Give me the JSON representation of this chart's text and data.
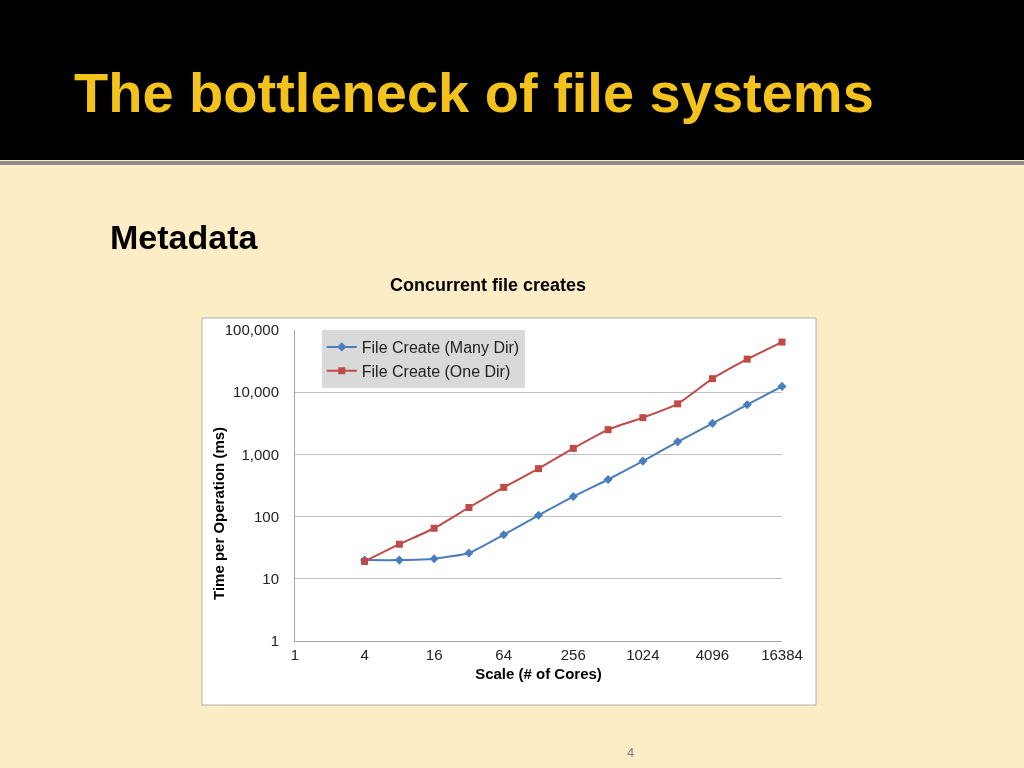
{
  "chart_data": {
    "type": "line",
    "title": "Concurrent file creates",
    "xlabel": "Scale (# of Cores)",
    "ylabel": "Time per Operation (ms)",
    "x": [
      4,
      8,
      16,
      32,
      64,
      128,
      256,
      512,
      1024,
      2048,
      4096,
      8192,
      16384
    ],
    "series": [
      {
        "name": "File Create (Many Dir)",
        "color": "#4a7ebb",
        "marker": "diamond",
        "values": [
          20,
          20,
          21,
          26,
          51,
          105,
          210,
          395,
          780,
          1590,
          3150,
          6300,
          12400
        ]
      },
      {
        "name": "File Create (One Dir)",
        "color": "#be4b48",
        "marker": "square",
        "values": [
          19,
          36,
          65,
          140,
          295,
          590,
          1250,
          2500,
          3900,
          6500,
          16500,
          34000,
          64000
        ]
      }
    ],
    "xlim": [
      1,
      16384
    ],
    "xticks": [
      1,
      4,
      16,
      64,
      256,
      1024,
      4096,
      16384
    ],
    "ylim": [
      1,
      100000
    ],
    "yticks": [
      1,
      10,
      100,
      {
        "value": 1000,
        "label": "1,000"
      },
      {
        "value": 10000,
        "label": "10,000"
      },
      {
        "value": 100000,
        "label": "100,000"
      }
    ],
    "log": "xy",
    "grid": "y",
    "legend": "top left",
    "line_style": "solid",
    "annotations": [
      "The bottleneck of file systems",
      "Metadata",
      "4"
    ]
  }
}
